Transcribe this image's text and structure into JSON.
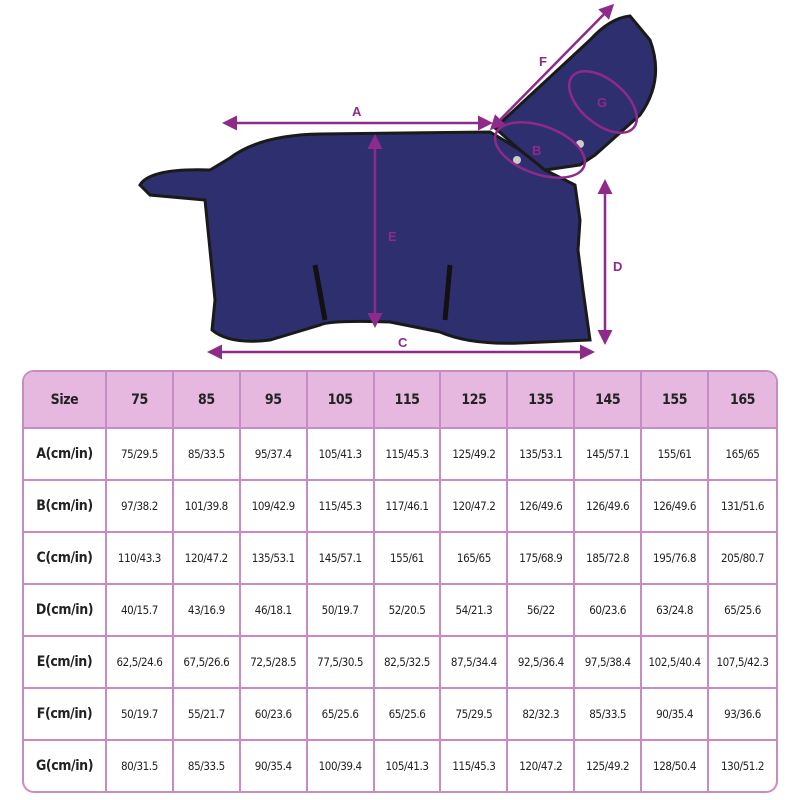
{
  "diagram": {
    "labels": [
      "A",
      "B",
      "C",
      "D",
      "E",
      "F",
      "G"
    ],
    "colors": {
      "blanket": "#2e2f6e",
      "trim": "#1a1a1a",
      "arrow": "#8e2a8a",
      "header": "#e6b8e0",
      "border": "#c78bc5"
    }
  },
  "table": {
    "headers": [
      "Size",
      "75",
      "85",
      "95",
      "105",
      "115",
      "125",
      "135",
      "145",
      "155",
      "165"
    ],
    "rows": [
      {
        "label": "A(cm/in)",
        "values": [
          "75/29.5",
          "85/33.5",
          "95/37.4",
          "105/41.3",
          "115/45.3",
          "125/49.2",
          "135/53.1",
          "145/57.1",
          "155/61",
          "165/65"
        ]
      },
      {
        "label": "B(cm/in)",
        "values": [
          "97/38.2",
          "101/39.8",
          "109/42.9",
          "115/45.3",
          "117/46.1",
          "120/47.2",
          "126/49.6",
          "126/49.6",
          "126/49.6",
          "131/51.6"
        ]
      },
      {
        "label": "C(cm/in)",
        "values": [
          "110/43.3",
          "120/47.2",
          "135/53.1",
          "145/57.1",
          "155/61",
          "165/65",
          "175/68.9",
          "185/72.8",
          "195/76.8",
          "205/80.7"
        ]
      },
      {
        "label": "D(cm/in)",
        "values": [
          "40/15.7",
          "43/16.9",
          "46/18.1",
          "50/19.7",
          "52/20.5",
          "54/21.3",
          "56/22",
          "60/23.6",
          "63/24.8",
          "65/25.6"
        ]
      },
      {
        "label": "E(cm/in)",
        "values": [
          "62,5/24.6",
          "67,5/26.6",
          "72,5/28.5",
          "77,5/30.5",
          "82,5/32.5",
          "87,5/34.4",
          "92,5/36.4",
          "97,5/38.4",
          "102,5/40.4",
          "107,5/42.3"
        ]
      },
      {
        "label": "F(cm/in)",
        "values": [
          "50/19.7",
          "55/21.7",
          "60/23.6",
          "65/25.6",
          "65/25.6",
          "75/29.5",
          "82/32.3",
          "85/33.5",
          "90/35.4",
          "93/36.6"
        ]
      },
      {
        "label": "G(cm/in)",
        "values": [
          "80/31.5",
          "85/33.5",
          "90/35.4",
          "100/39.4",
          "105/41.3",
          "115/45.3",
          "120/47.2",
          "125/49.2",
          "128/50.4",
          "130/51.2"
        ]
      }
    ]
  }
}
